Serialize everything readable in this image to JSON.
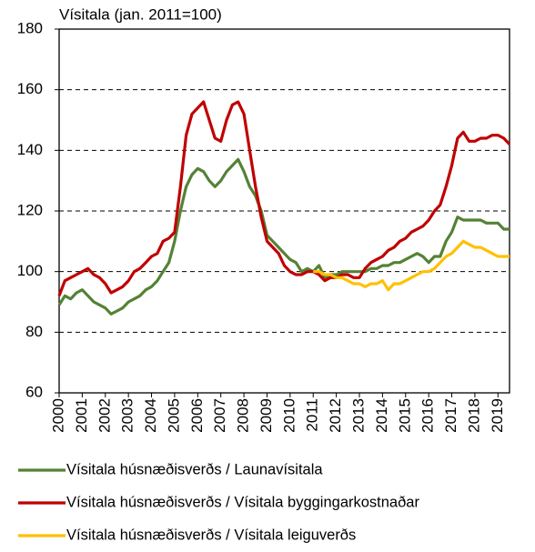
{
  "chart_data": {
    "type": "line",
    "title": "Vísitala (jan. 2011=100)",
    "x": [
      2000,
      2000.25,
      2000.5,
      2000.75,
      2001,
      2001.25,
      2001.5,
      2001.75,
      2002,
      2002.25,
      2002.5,
      2002.75,
      2003,
      2003.25,
      2003.5,
      2003.75,
      2004,
      2004.25,
      2004.5,
      2004.75,
      2005,
      2005.25,
      2005.5,
      2005.75,
      2006,
      2006.25,
      2006.5,
      2006.75,
      2007,
      2007.25,
      2007.5,
      2007.75,
      2008,
      2008.25,
      2008.5,
      2008.75,
      2009,
      2009.25,
      2009.5,
      2009.75,
      2010,
      2010.25,
      2010.5,
      2010.75,
      2011,
      2011.25,
      2011.5,
      2011.75,
      2012,
      2012.25,
      2012.5,
      2012.75,
      2013,
      2013.25,
      2013.5,
      2013.75,
      2014,
      2014.25,
      2014.5,
      2014.75,
      2015,
      2015.25,
      2015.5,
      2015.75,
      2016,
      2016.25,
      2016.5,
      2016.75,
      2017,
      2017.25,
      2017.5,
      2017.75,
      2018,
      2018.25,
      2018.5,
      2018.75,
      2019,
      2019.25,
      2019.5
    ],
    "series": [
      {
        "name": "Vísitala húsnæðisverðs / Launavísitala",
        "color": "#548235",
        "values": [
          89,
          92,
          91,
          93,
          94,
          92,
          90,
          89,
          88,
          86,
          87,
          88,
          90,
          91,
          92,
          94,
          95,
          97,
          100,
          103,
          110,
          120,
          128,
          132,
          134,
          133,
          130,
          128,
          130,
          133,
          135,
          137,
          133,
          128,
          125,
          120,
          112,
          110,
          108,
          106,
          104,
          103,
          100,
          101,
          100,
          102,
          98,
          99,
          99,
          100,
          100,
          100,
          100,
          100,
          101,
          101,
          102,
          102,
          103,
          103,
          104,
          105,
          106,
          105,
          103,
          105,
          105,
          110,
          113,
          118,
          117,
          117,
          117,
          117,
          116,
          116,
          116,
          114,
          114
        ]
      },
      {
        "name": "Vísitala húsnæðisverðs / Vísitala byggingarkostnaðar",
        "color": "#c00000",
        "values": [
          92,
          97,
          98,
          99,
          100,
          101,
          99,
          98,
          96,
          93,
          94,
          95,
          97,
          100,
          101,
          103,
          105,
          106,
          110,
          111,
          113,
          128,
          145,
          152,
          154,
          156,
          150,
          144,
          143,
          150,
          155,
          156,
          152,
          140,
          128,
          118,
          110,
          108,
          106,
          102,
          100,
          99,
          99,
          100,
          100,
          99,
          97,
          98,
          98,
          99,
          99,
          98,
          98,
          101,
          103,
          104,
          105,
          107,
          108,
          110,
          111,
          113,
          114,
          115,
          117,
          120,
          122,
          128,
          135,
          144,
          146,
          143,
          143,
          144,
          144,
          145,
          145,
          144,
          142
        ]
      },
      {
        "name": "Vísitala húsnæðisverðs / Vísitala leiguverðs",
        "color": "#ffc000",
        "values": [
          null,
          null,
          null,
          null,
          null,
          null,
          null,
          null,
          null,
          null,
          null,
          null,
          null,
          null,
          null,
          null,
          null,
          null,
          null,
          null,
          null,
          null,
          null,
          null,
          null,
          null,
          null,
          null,
          null,
          null,
          null,
          null,
          null,
          null,
          null,
          null,
          null,
          null,
          null,
          null,
          null,
          null,
          null,
          null,
          100,
          100,
          99,
          99,
          98,
          98,
          97,
          96,
          96,
          95,
          96,
          96,
          97,
          94,
          96,
          96,
          97,
          98,
          99,
          100,
          100,
          101,
          103,
          105,
          106,
          108,
          110,
          109,
          108,
          108,
          107,
          106,
          105,
          105,
          105
        ]
      }
    ],
    "xlim": [
      2000,
      2019.5
    ],
    "xticks": [
      2000,
      2001,
      2002,
      2003,
      2004,
      2005,
      2006,
      2007,
      2008,
      2009,
      2010,
      2011,
      2012,
      2013,
      2014,
      2015,
      2016,
      2017,
      2018,
      2019
    ],
    "ylim": [
      60,
      180
    ],
    "yticks": [
      60,
      80,
      100,
      120,
      140,
      160,
      180
    ],
    "grid": true
  }
}
